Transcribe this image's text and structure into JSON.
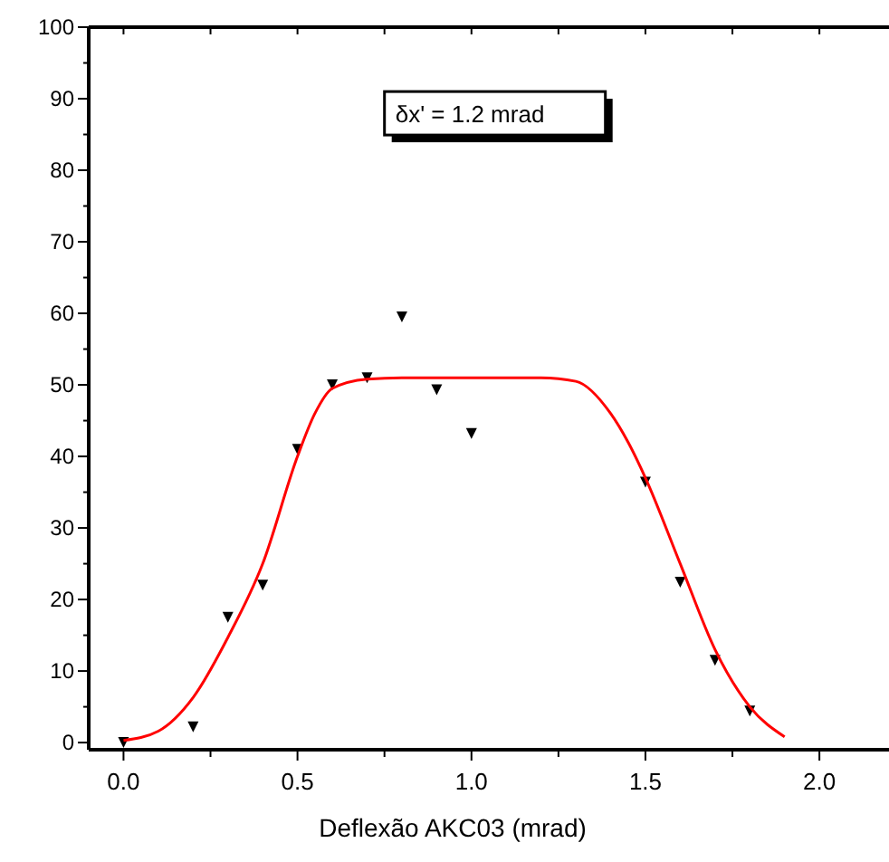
{
  "chart_data": {
    "type": "scatter",
    "xlabel": "Deflexão AKC03 (mrad)",
    "annotations": [
      "δx' = 1.2 mrad"
    ],
    "xlim": [
      -0.1,
      2.2
    ],
    "ylim": [
      -1,
      100
    ],
    "xticks": [
      {
        "value": 0,
        "label": "0.0"
      },
      {
        "value": 0.25,
        "label": null
      },
      {
        "value": 0.5,
        "label": "0.5"
      },
      {
        "value": 0.75,
        "label": null
      },
      {
        "value": 1,
        "label": "1.0"
      },
      {
        "value": 1.25,
        "label": null
      },
      {
        "value": 1.5,
        "label": "1.5"
      },
      {
        "value": 1.75,
        "label": null
      },
      {
        "value": 2,
        "label": "2.0"
      }
    ],
    "yticks": [
      0,
      10,
      20,
      30,
      40,
      50,
      60,
      70,
      80,
      90,
      100
    ],
    "marker": "triangle",
    "grid": false,
    "series": [
      {
        "color": "#000000",
        "x": [
          0,
          0.2,
          0.3,
          0.4,
          0.5,
          0.6,
          0.7,
          0.8,
          0.9,
          1.0,
          1.5,
          1.6,
          1.7,
          1.8
        ],
        "values": [
          0,
          2.2,
          17.5,
          22,
          41,
          50,
          51,
          59.5,
          49.3,
          43.2,
          36.4,
          22.4,
          11.5,
          4.4
        ]
      },
      {
        "type": "line",
        "color": "#ff0000",
        "marker": "none",
        "x": [
          0,
          0.1,
          0.2,
          0.3,
          0.4,
          0.5,
          0.55,
          0.6,
          0.7,
          0.8,
          1.0,
          1.2,
          1.3,
          1.4,
          1.45,
          1.5,
          1.6,
          1.7,
          1.8,
          1.9
        ],
        "values": [
          0.3,
          1.6,
          6.3,
          14.7,
          25,
          40,
          46,
          49.5,
          50.8,
          51,
          51,
          51,
          50.5,
          46,
          42,
          37,
          25,
          13,
          5,
          0.8
        ]
      }
    ]
  }
}
